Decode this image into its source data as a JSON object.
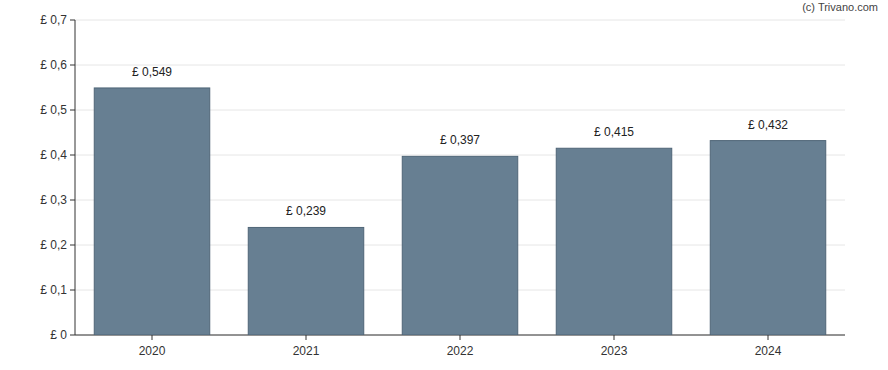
{
  "chart_data": {
    "type": "bar",
    "categories": [
      "2020",
      "2021",
      "2022",
      "2023",
      "2024"
    ],
    "values": [
      0.549,
      0.239,
      0.397,
      0.415,
      0.432
    ],
    "value_labels": [
      "£ 0,549",
      "£ 0,239",
      "£ 0,397",
      "£ 0,415",
      "£ 0,432"
    ],
    "data_labels": true,
    "color": "#677f92",
    "ylim": [
      0,
      0.7
    ],
    "yticks": [
      {
        "value": 0,
        "label": "£ 0"
      },
      {
        "value": 0.1,
        "label": "£ 0,1"
      },
      {
        "value": 0.2,
        "label": "£ 0,2"
      },
      {
        "value": 0.3,
        "label": "£ 0,3"
      },
      {
        "value": 0.4,
        "label": "£ 0,4"
      },
      {
        "value": 0.5,
        "label": "£ 0,5"
      },
      {
        "value": 0.6,
        "label": "£ 0,6"
      },
      {
        "value": 0.7,
        "label": "£ 0,7"
      }
    ],
    "grid": true,
    "annotations": [
      "(c) Trivano.com"
    ]
  }
}
